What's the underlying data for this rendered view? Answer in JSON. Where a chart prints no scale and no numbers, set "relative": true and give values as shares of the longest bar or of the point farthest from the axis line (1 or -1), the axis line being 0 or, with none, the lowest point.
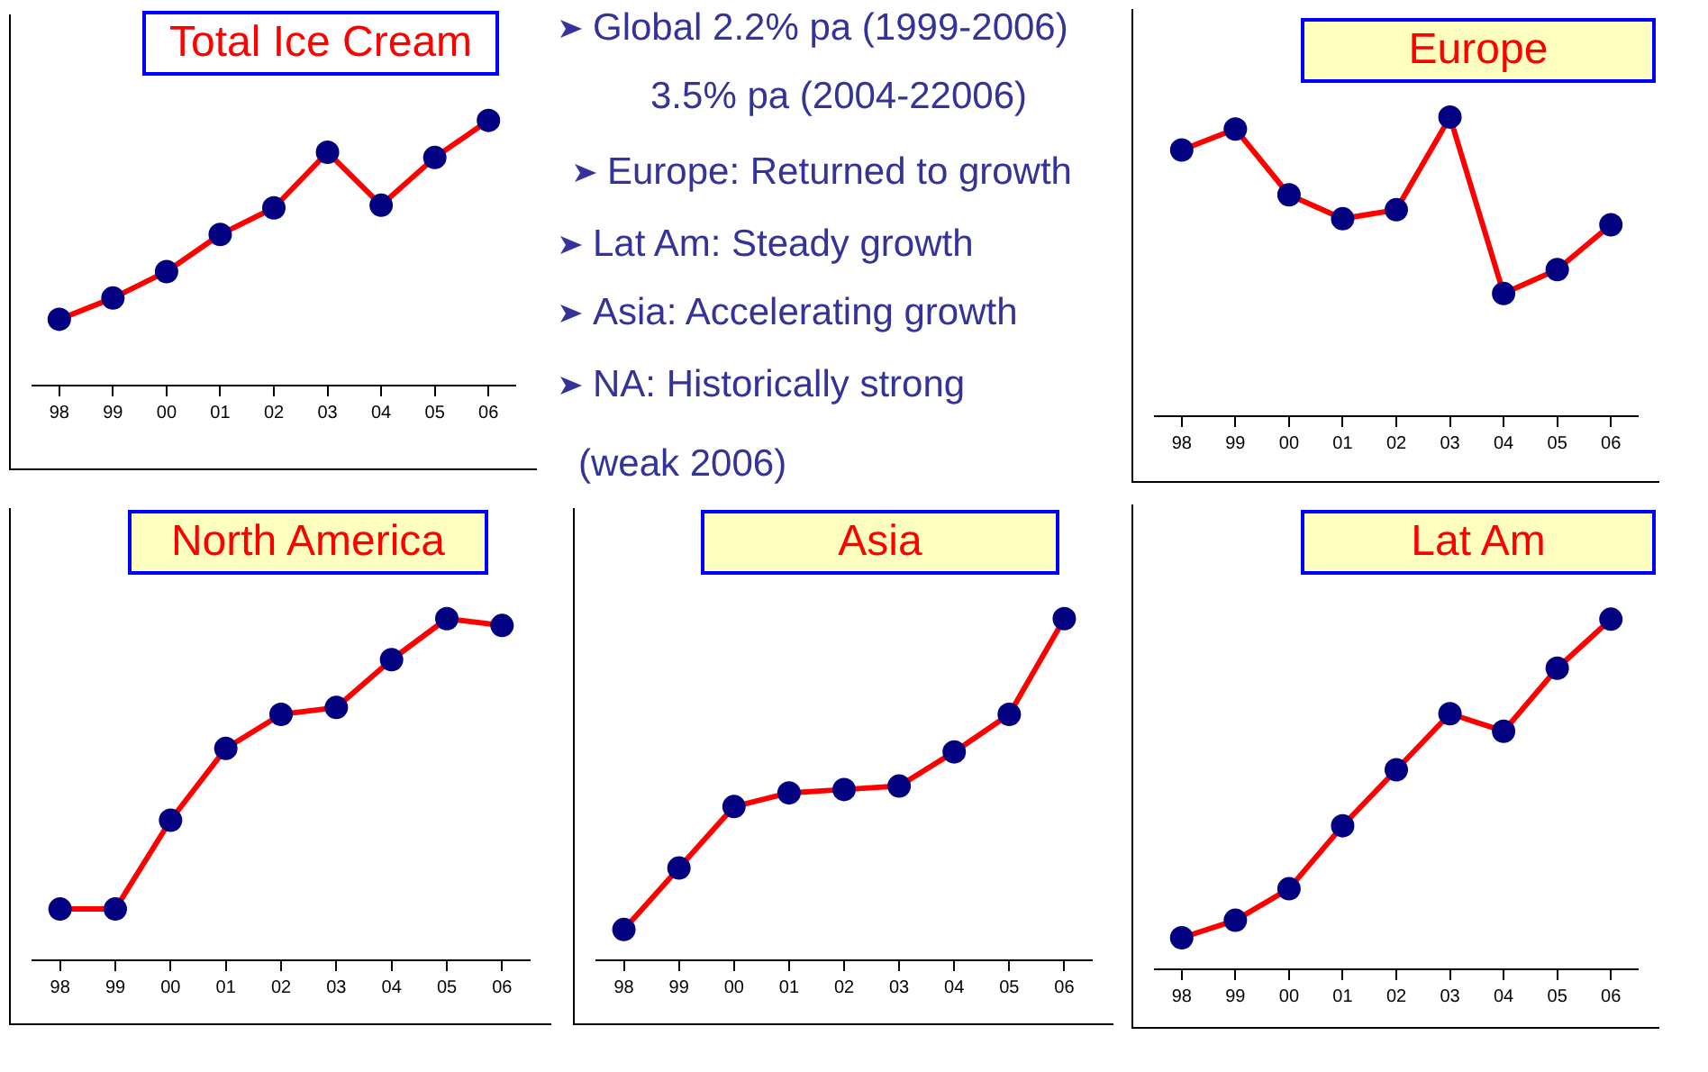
{
  "chart_data": [
    {
      "type": "line",
      "title": "Total Ice Cream",
      "relative": true,
      "categories": [
        "98",
        "99",
        "00",
        "01",
        "02",
        "03",
        "04",
        "05",
        "06"
      ],
      "series": [
        {
          "color": "#ff0000",
          "values": [
            0.25,
            0.33,
            0.43,
            0.57,
            0.67,
            0.88,
            0.68,
            0.86,
            1
          ]
        }
      ],
      "marker": "circle",
      "grid": false,
      "legend": false
    },
    {
      "type": "other",
      "annotations": [
        "Global 2.2% pa (1999-2006)",
        "3.5% pa (2004-22006)",
        "Europe: Returned to growth",
        "Lat Am: Steady growth",
        "Asia: Accelerating growth",
        "NA: Historically strong",
        "(weak 2006)"
      ]
    },
    {
      "type": "line",
      "title": "Europe",
      "relative": true,
      "categories": [
        "98",
        "99",
        "00",
        "01",
        "02",
        "03",
        "04",
        "05",
        "06"
      ],
      "series": [
        {
          "color": "#ff0000",
          "values": [
            0.89,
            0.96,
            0.74,
            0.66,
            0.69,
            1,
            0.41,
            0.49,
            0.64
          ]
        }
      ],
      "marker": "circle",
      "grid": false,
      "legend": false
    },
    {
      "type": "line",
      "title": "North America",
      "relative": true,
      "categories": [
        "98",
        "99",
        "00",
        "01",
        "02",
        "03",
        "04",
        "05",
        "06"
      ],
      "series": [
        {
          "color": "#ff0000",
          "values": [
            0.15,
            0.15,
            0.41,
            0.62,
            0.72,
            0.74,
            0.88,
            1,
            0.98
          ]
        }
      ],
      "marker": "circle",
      "grid": false,
      "legend": false
    },
    {
      "type": "line",
      "title": "Asia",
      "relative": true,
      "categories": [
        "98",
        "99",
        "00",
        "01",
        "02",
        "03",
        "04",
        "05",
        "06"
      ],
      "series": [
        {
          "color": "#ff0000",
          "values": [
            0.09,
            0.27,
            0.45,
            0.49,
            0.5,
            0.51,
            0.61,
            0.72,
            1
          ]
        }
      ],
      "marker": "circle",
      "grid": false,
      "legend": false
    },
    {
      "type": "line",
      "title": "Lat Am",
      "relative": true,
      "categories": [
        "98",
        "99",
        "00",
        "01",
        "02",
        "03",
        "04",
        "05",
        "06"
      ],
      "series": [
        {
          "color": "#ff0000",
          "values": [
            0.09,
            0.14,
            0.23,
            0.41,
            0.57,
            0.73,
            0.68,
            0.86,
            1
          ]
        }
      ],
      "marker": "circle",
      "grid": false,
      "legend": false
    }
  ]
}
